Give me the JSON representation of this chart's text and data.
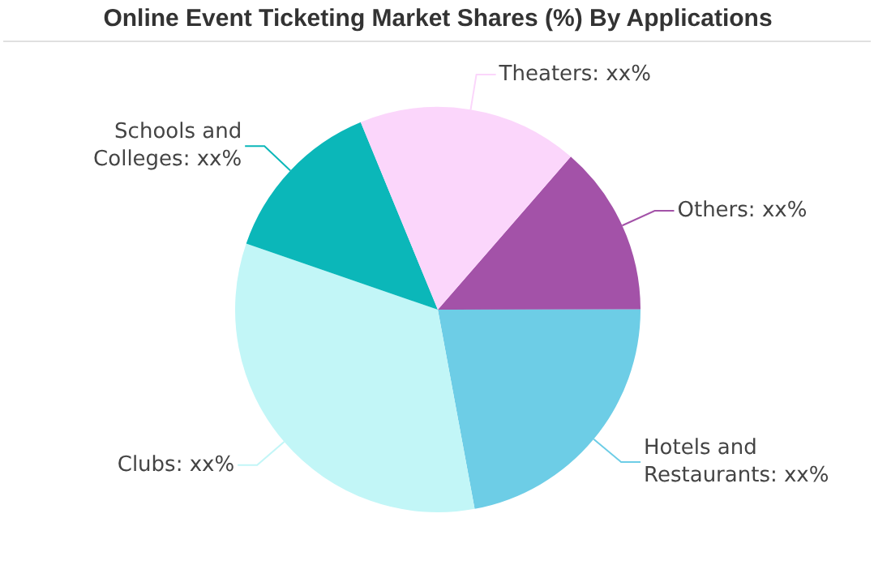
{
  "chart_data": {
    "type": "pie",
    "title": "Online Event Ticketing Market Shares (%) By Applications",
    "categories": [
      "Others",
      "Hotels and Restaurants",
      "Clubs",
      "Schools and Colleges",
      "Theaters"
    ],
    "values": [
      13.6,
      22.1,
      33.2,
      13.5,
      17.6
    ],
    "colors": [
      "#a352a8",
      "#6dcde6",
      "#c2f6f7",
      "#0bb7b9",
      "#fbd6fb"
    ],
    "value_labels": [
      "xx%",
      "xx%",
      "xx%",
      "xx%",
      "xx%"
    ],
    "legend": false
  }
}
